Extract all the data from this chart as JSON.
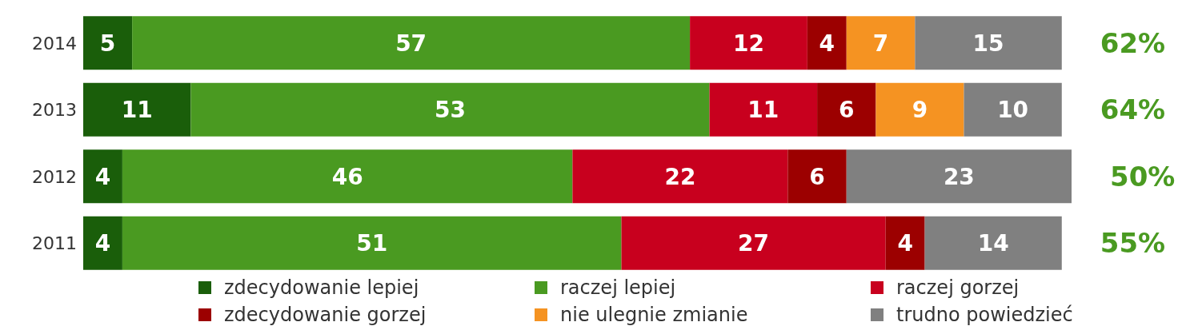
{
  "chart_data": {
    "type": "bar",
    "orientation": "horizontal",
    "stacked": true,
    "categories": [
      "2014",
      "2013",
      "2012",
      "2011"
    ],
    "series": [
      {
        "name": "zdecydowanie lepiej",
        "color": "#1a5e0a",
        "values": [
          5,
          11,
          4,
          4
        ]
      },
      {
        "name": "raczej lepiej",
        "color": "#4a9a21",
        "values": [
          57,
          53,
          46,
          51
        ]
      },
      {
        "name": "raczej gorzej",
        "color": "#c8001e",
        "values": [
          12,
          11,
          22,
          27
        ]
      },
      {
        "name": "zdecydowanie gorzej",
        "color": "#9c0000",
        "values": [
          4,
          6,
          6,
          4
        ]
      },
      {
        "name": "nie ulegnie zmianie",
        "color": "#f59322",
        "values": [
          7,
          9,
          null,
          null
        ]
      },
      {
        "name": "trudno powiedzieć",
        "color": "#808080",
        "values": [
          15,
          10,
          23,
          14
        ]
      }
    ],
    "data_labels": true,
    "legend": "bottom",
    "annotations": [
      "62%",
      "64%",
      "50%",
      "55%"
    ]
  }
}
